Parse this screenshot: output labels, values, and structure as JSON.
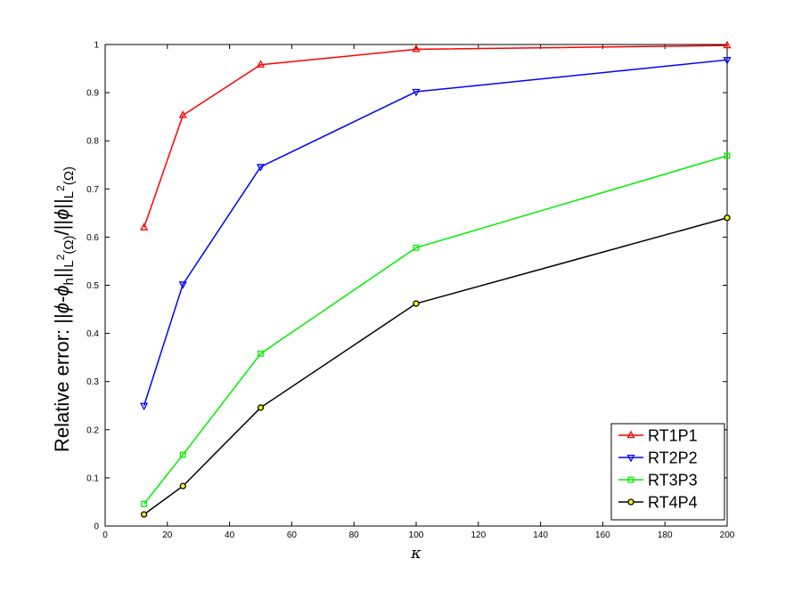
{
  "chart_data": {
    "type": "line",
    "xlabel": "κ",
    "ylabel": "Relative error: ||ϕ-ϕ_h||_{L²(Ω)}/||ϕ||_{L²(Ω)}",
    "ylabel_parts": {
      "t1": "Relative error: ||",
      "t2": "ϕ",
      "t3": "-",
      "t4": "ϕ",
      "t5": "h",
      "t6": "||",
      "t7": "L",
      "t8": "2",
      "t9": "(Ω)",
      "t10": "/||",
      "t11": "ϕ",
      "t12": "||",
      "t13": "L",
      "t14": "2",
      "t15": "(Ω)"
    },
    "xlim": [
      0,
      200
    ],
    "ylim": [
      0,
      1
    ],
    "xticks": [
      0,
      20,
      40,
      60,
      80,
      100,
      120,
      140,
      160,
      180,
      200
    ],
    "yticks": [
      0,
      0.1,
      0.2,
      0.3,
      0.4,
      0.5,
      0.6,
      0.7,
      0.8,
      0.9,
      1
    ],
    "x": [
      12.5,
      25,
      50,
      100,
      200
    ],
    "series": [
      {
        "name": "RT1P1",
        "color": "#ff0000",
        "marker": "triangle-up",
        "markerFill": "none",
        "values": [
          0.62,
          0.853,
          0.958,
          0.99,
          0.998
        ]
      },
      {
        "name": "RT2P2",
        "color": "#0000ff",
        "marker": "triangle-down",
        "markerFill": "none",
        "values": [
          0.25,
          0.502,
          0.746,
          0.902,
          0.968
        ]
      },
      {
        "name": "RT3P3",
        "color": "#00ee00",
        "marker": "square",
        "markerFill": "none",
        "values": [
          0.046,
          0.148,
          0.358,
          0.578,
          0.769
        ]
      },
      {
        "name": "RT4P4",
        "color": "#000000",
        "marker": "circle",
        "markerFill": "#ffff00",
        "values": [
          0.024,
          0.083,
          0.246,
          0.462,
          0.64
        ]
      }
    ],
    "legend_position": "bottom-right",
    "grid": false
  }
}
